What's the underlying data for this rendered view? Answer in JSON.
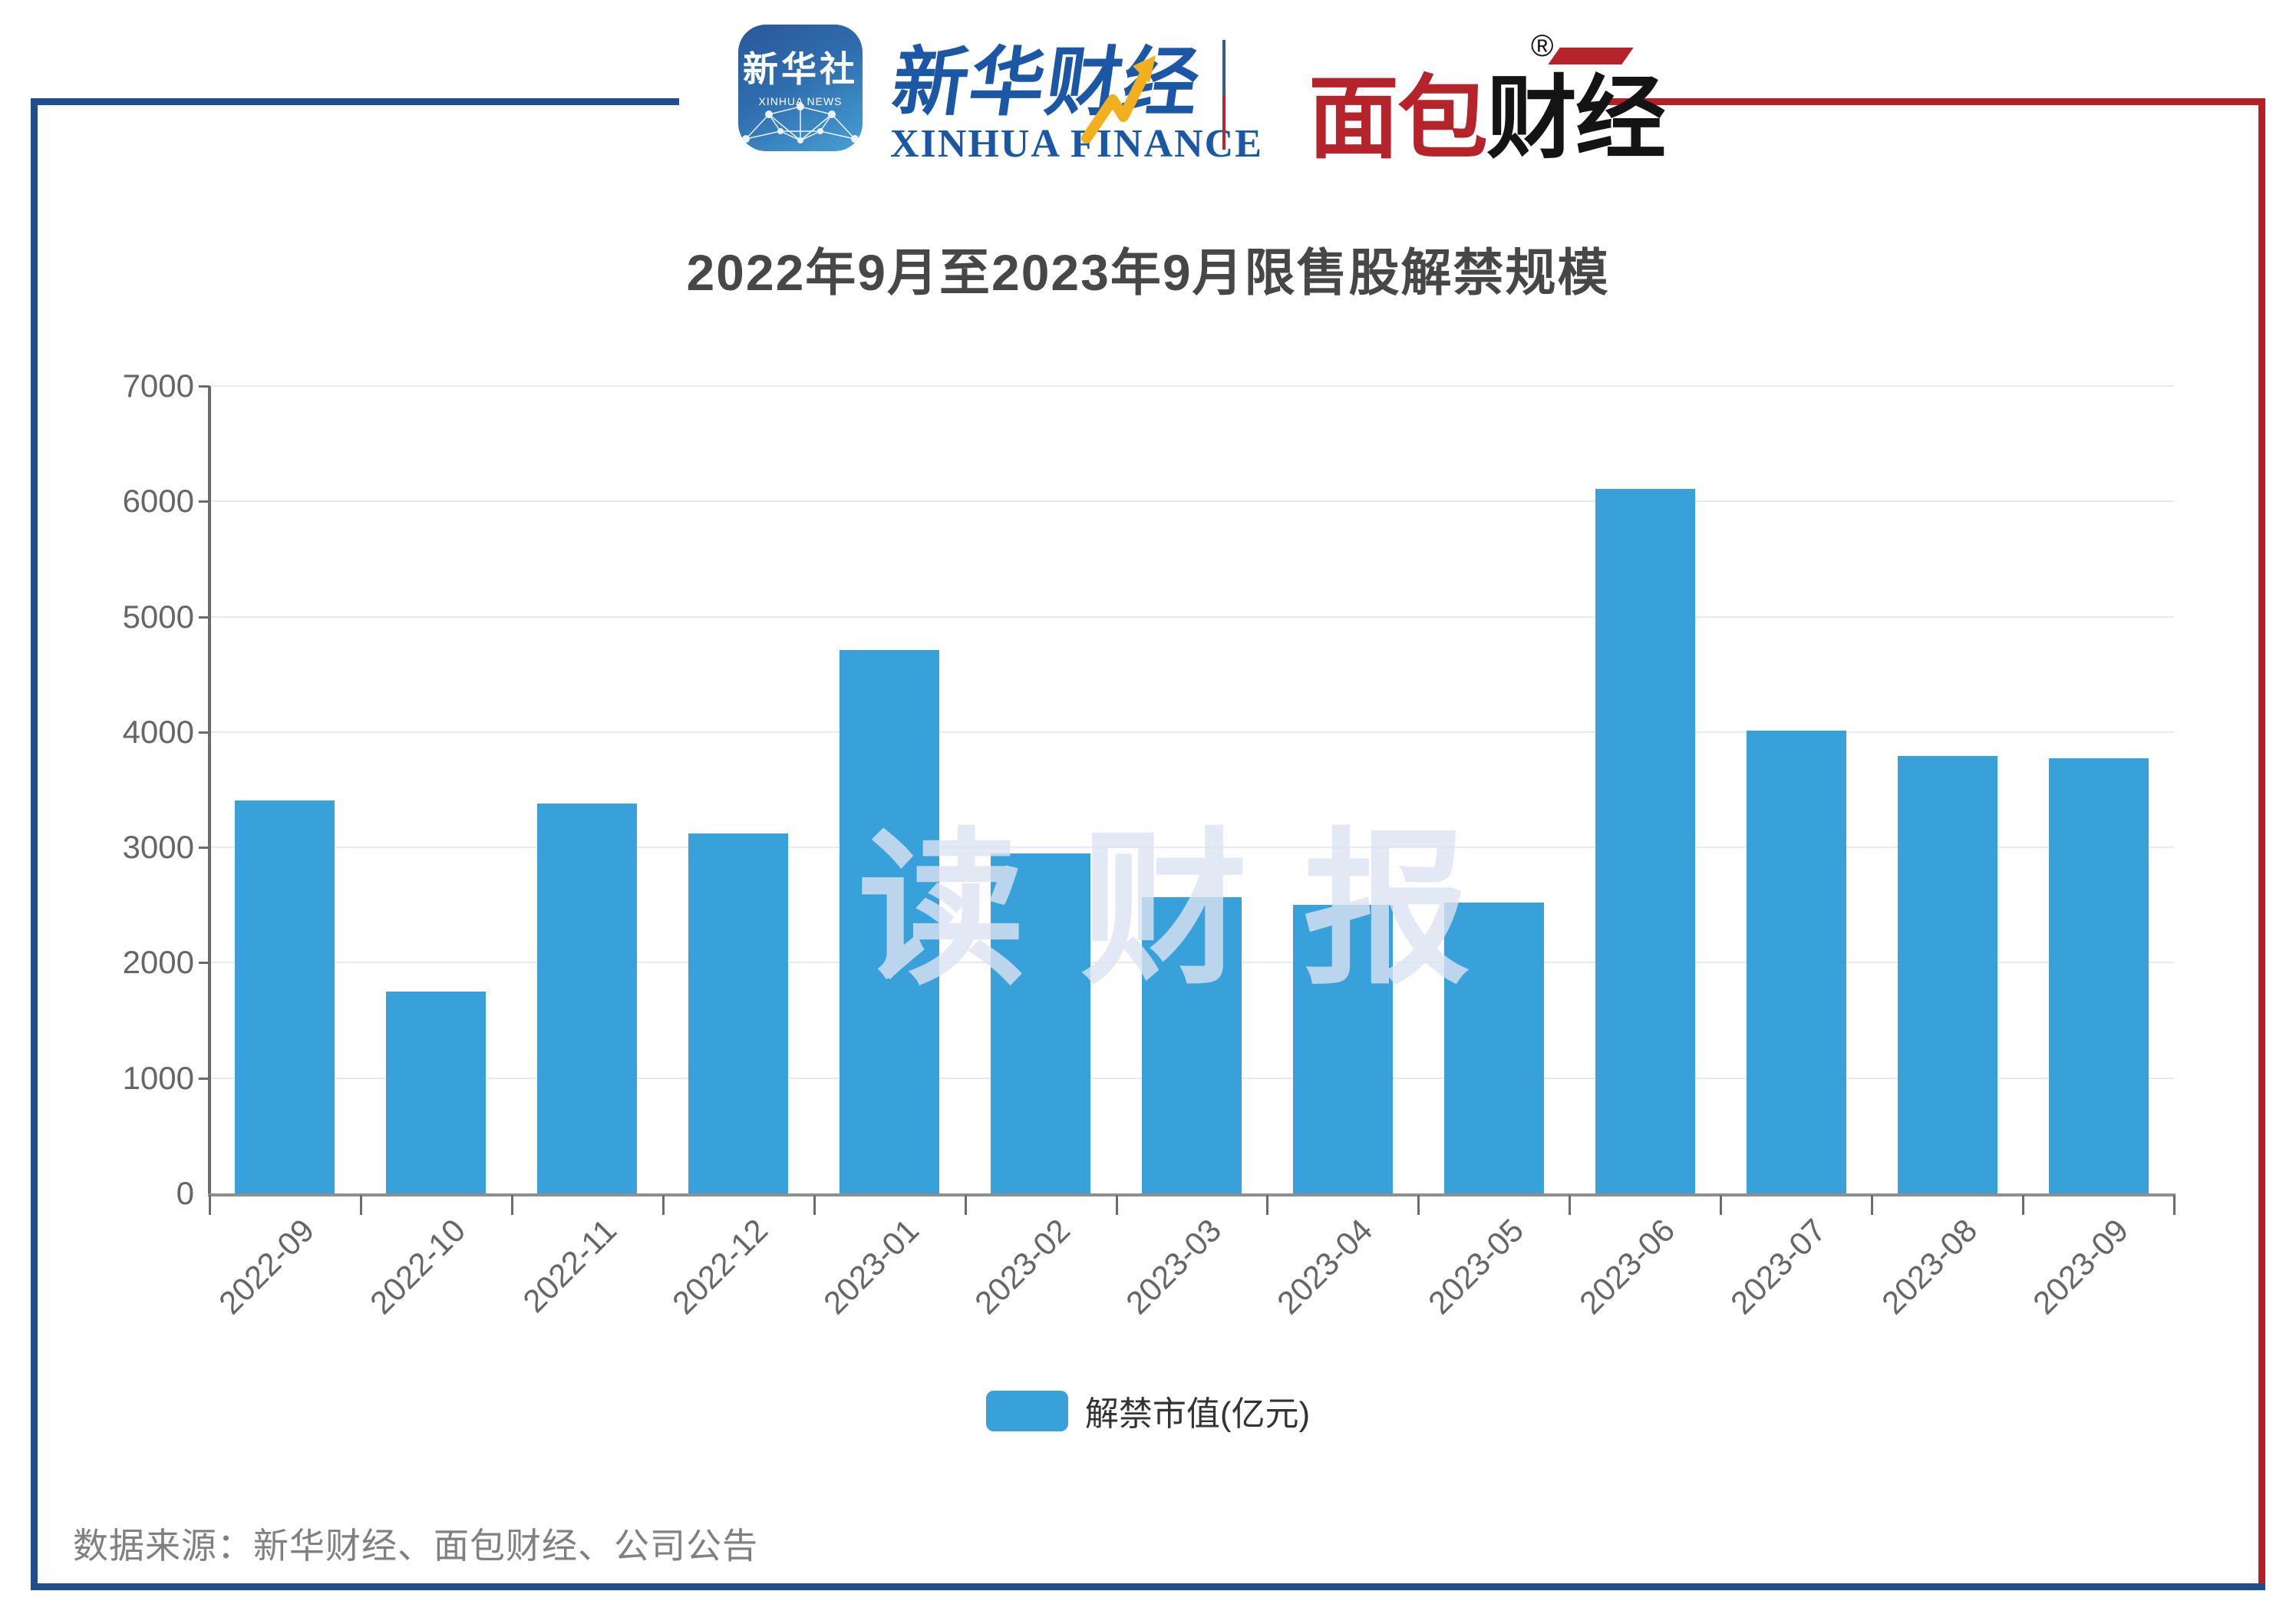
{
  "header": {
    "xinhua_news_icon": {
      "line1": "新华社",
      "line2": "XINHUA NEWS"
    },
    "xinhua_finance": {
      "cn": "新华财经",
      "en": "XINHUA FINANCE"
    },
    "mianbao_caijing": {
      "cn_red": "面包",
      "cn_black": "财经",
      "registered_mark": "®"
    }
  },
  "title": "2022年9月至2023年9月限售股解禁规模",
  "watermark": "读财报",
  "legend": {
    "label": "解禁市值(亿元)"
  },
  "source": "数据来源：新华财经、面包财经、公司公告",
  "colors": {
    "bar": "#38A1DA",
    "frame_blue": "#1F4E8F",
    "frame_red": "#B42025",
    "gridline": "#E4E9F5",
    "axis": "#6b6b6b",
    "title_text": "#474747",
    "tick_text": "#666666",
    "source_text": "#808080",
    "watermark_text": "#dce3f2"
  },
  "chart_data": {
    "type": "bar",
    "title": "2022年9月至2023年9月限售股解禁规模",
    "categories": [
      "2022-09",
      "2022-10",
      "2022-11",
      "2022-12",
      "2023-01",
      "2023-02",
      "2023-03",
      "2023-04",
      "2023-05",
      "2023-06",
      "2023-07",
      "2023-08",
      "2023-09"
    ],
    "series": [
      {
        "name": "解禁市值(亿元)",
        "values": [
          3410,
          1750,
          3380,
          3120,
          4710,
          2950,
          2570,
          2500,
          2520,
          6110,
          4010,
          3790,
          3770
        ]
      }
    ],
    "xlabel": "",
    "ylabel": "",
    "ylim": [
      0,
      7000
    ],
    "ytick_interval": 1000,
    "grid": true,
    "legend_position": "bottom",
    "x_label_rotation_deg": 45
  }
}
